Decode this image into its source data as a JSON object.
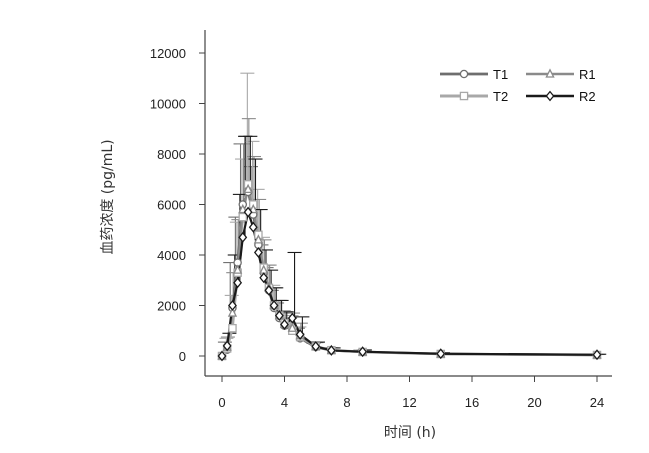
{
  "chart_data": {
    "type": "line",
    "title": "",
    "xlabel": "时间 (h)",
    "ylabel": "血药浓度 (pg/mL)",
    "xlim": [
      0,
      24
    ],
    "ylim": [
      0,
      12000
    ],
    "xticks": [
      0,
      4,
      8,
      12,
      16,
      20,
      24
    ],
    "yticks": [
      0,
      2000,
      4000,
      6000,
      8000,
      10000,
      12000
    ],
    "grid": false,
    "legend_position": "top-right",
    "x": [
      0,
      0.33,
      0.67,
      1,
      1.33,
      1.67,
      2,
      2.33,
      2.67,
      3,
      3.33,
      3.67,
      4,
      4.5,
      5,
      6,
      7,
      9,
      14,
      24
    ],
    "series": [
      {
        "name": "T1",
        "marker": "circle",
        "color": "#6e6e6e",
        "width": 2.4,
        "values": [
          0,
          250,
          1900,
          3700,
          6000,
          6500,
          5600,
          4400,
          3300,
          2600,
          1900,
          1500,
          1200,
          1000,
          700,
          350,
          220,
          160,
          80,
          40
        ],
        "errors": [
          0,
          300,
          1800,
          1800,
          2400,
          2200,
          1900,
          1400,
          1100,
          900,
          700,
          600,
          500,
          500,
          400,
          150,
          100,
          70,
          40,
          20
        ]
      },
      {
        "name": "T2",
        "marker": "square",
        "color": "#a8a8a8",
        "width": 2.6,
        "values": [
          0,
          300,
          1100,
          3300,
          5500,
          6800,
          6000,
          4800,
          3500,
          2700,
          2000,
          1600,
          1300,
          1000,
          750,
          380,
          230,
          160,
          80,
          40
        ],
        "errors": [
          0,
          400,
          1300,
          2000,
          2300,
          4400,
          2500,
          1800,
          1200,
          900,
          800,
          600,
          500,
          600,
          400,
          170,
          100,
          70,
          40,
          20
        ]
      },
      {
        "name": "R1",
        "marker": "triangle",
        "color": "#8a8a8a",
        "width": 2.0,
        "values": [
          0,
          350,
          1700,
          3400,
          5800,
          6600,
          5800,
          4600,
          3400,
          2700,
          2000,
          1600,
          1250,
          1100,
          800,
          370,
          220,
          160,
          80,
          40
        ],
        "errors": [
          0,
          400,
          1600,
          2000,
          2600,
          2800,
          2100,
          1600,
          1200,
          900,
          700,
          600,
          500,
          600,
          500,
          160,
          100,
          70,
          40,
          20
        ]
      },
      {
        "name": "R2",
        "marker": "diamond",
        "color": "#1a1a1a",
        "width": 2.2,
        "values": [
          0,
          400,
          2000,
          2900,
          4700,
          5700,
          5100,
          4100,
          3100,
          2600,
          2000,
          1600,
          1250,
          1500,
          850,
          380,
          220,
          170,
          90,
          50
        ],
        "errors": [
          0,
          500,
          2000,
          3500,
          4000,
          3000,
          2700,
          1700,
          1100,
          800,
          700,
          600,
          500,
          2600,
          700,
          170,
          100,
          70,
          40,
          20
        ]
      }
    ]
  }
}
